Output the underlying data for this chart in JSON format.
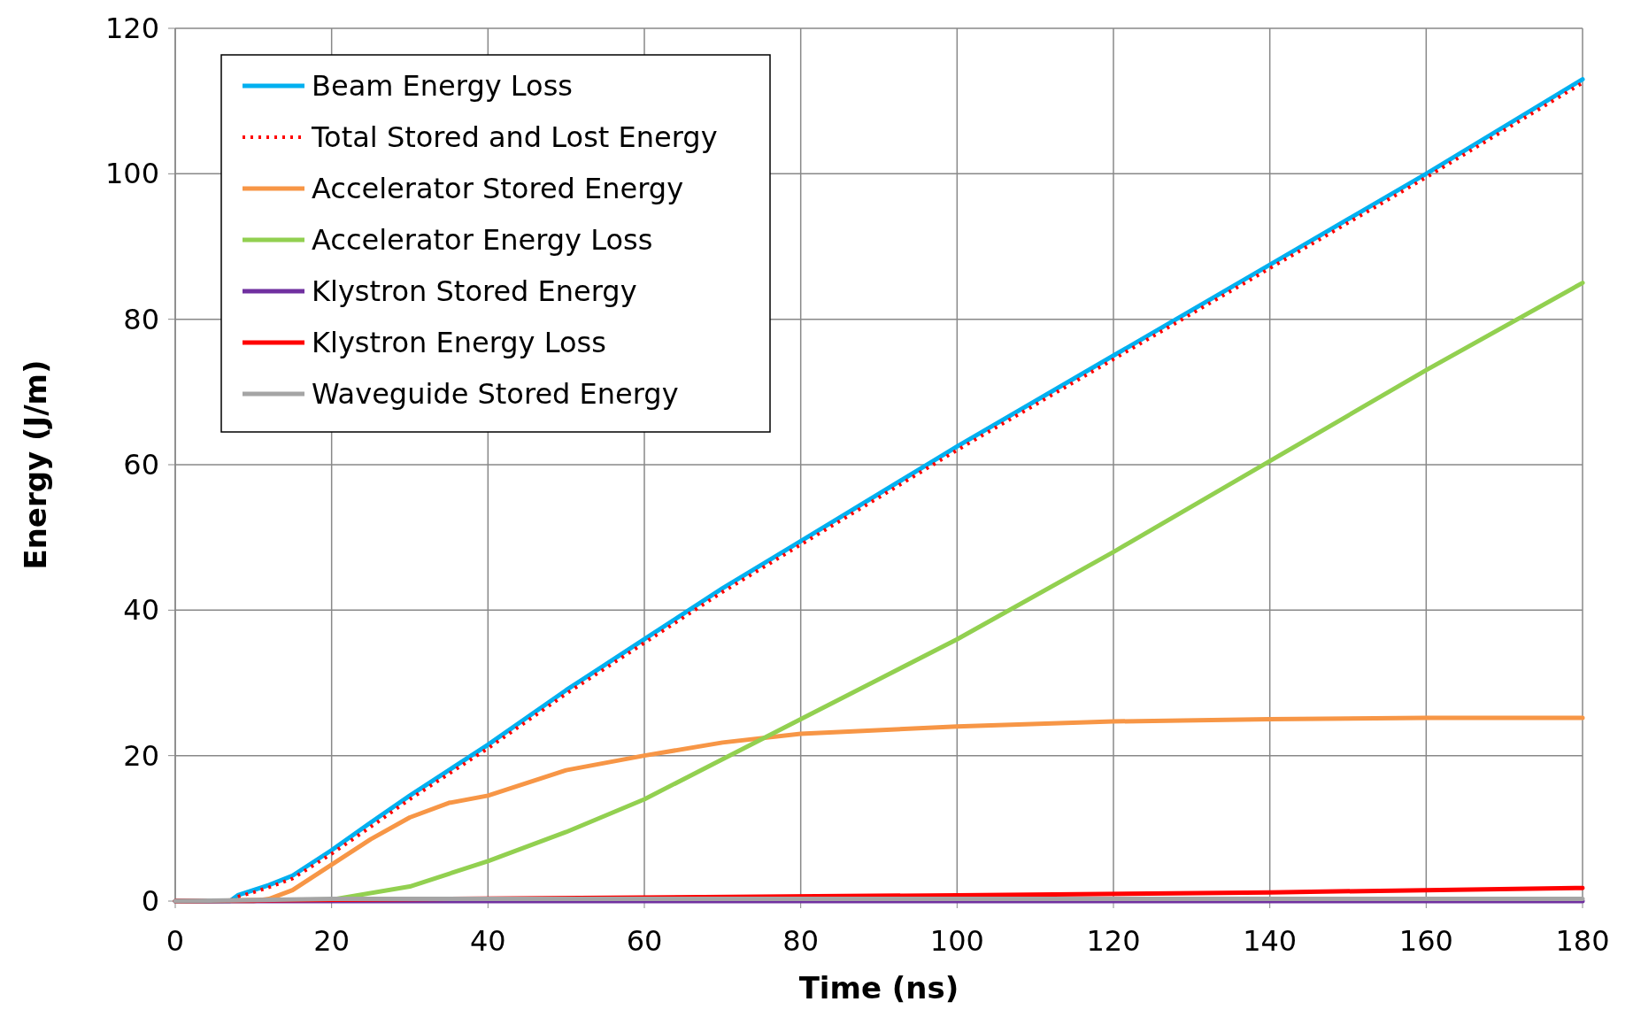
{
  "chart_data": {
    "type": "line",
    "xlabel": "Time (ns)",
    "ylabel": "Energy (J/m)",
    "xlim": [
      0,
      180
    ],
    "ylim": [
      0,
      120
    ],
    "xticks": [
      0,
      20,
      40,
      60,
      80,
      100,
      120,
      140,
      160,
      180
    ],
    "yticks": [
      0,
      20,
      40,
      60,
      80,
      100,
      120
    ],
    "grid": true,
    "legend": "top left",
    "series": [
      {
        "name": "Beam Energy Loss",
        "color": "#00b0f0",
        "line_style": "solid",
        "x": [
          0,
          7,
          8,
          10,
          12,
          15,
          20,
          25,
          30,
          35,
          40,
          50,
          60,
          70,
          80,
          100,
          120,
          140,
          160,
          180
        ],
        "values": [
          0,
          0,
          0.8,
          1.5,
          2.2,
          3.5,
          7,
          10.8,
          14.5,
          18,
          21.5,
          29,
          36,
          43,
          49.5,
          62.5,
          75,
          87.5,
          100,
          113
        ]
      },
      {
        "name": "Total Stored and Lost Energy",
        "color": "#ff0000",
        "line_style": "dotted",
        "x": [
          0,
          7,
          8,
          10,
          12,
          15,
          20,
          25,
          30,
          35,
          40,
          50,
          60,
          70,
          80,
          100,
          120,
          140,
          160,
          180
        ],
        "values": [
          0,
          0,
          0.6,
          1.2,
          1.9,
          3.1,
          6.5,
          10.2,
          14,
          17.5,
          21,
          28.5,
          35.5,
          42.5,
          49,
          62,
          74.5,
          87,
          99.5,
          112.5
        ]
      },
      {
        "name": "Accelerator Stored Energy",
        "color": "#f79646",
        "line_style": "solid",
        "x": [
          0,
          10,
          12,
          15,
          20,
          25,
          30,
          35,
          40,
          50,
          60,
          70,
          80,
          100,
          120,
          140,
          160,
          180
        ],
        "values": [
          0,
          0,
          0.3,
          1.5,
          5,
          8.5,
          11.5,
          13.5,
          14.5,
          18,
          20,
          21.8,
          23,
          24,
          24.7,
          25,
          25.2,
          25.2
        ]
      },
      {
        "name": "Accelerator Energy Loss",
        "color": "#92d050",
        "line_style": "solid",
        "x": [
          0,
          20,
          30,
          40,
          50,
          60,
          70,
          80,
          100,
          120,
          140,
          160,
          180
        ],
        "values": [
          0,
          0.2,
          2,
          5.5,
          9.5,
          14,
          19.5,
          25,
          36,
          48,
          60.5,
          73,
          85
        ]
      },
      {
        "name": "Klystron Stored Energy",
        "color": "#7030a0",
        "line_style": "solid",
        "x": [
          0,
          180
        ],
        "values": [
          0,
          0
        ]
      },
      {
        "name": "Klystron Energy Loss",
        "color": "#ff0000",
        "line_style": "solid",
        "x": [
          0,
          60,
          100,
          140,
          180
        ],
        "values": [
          0,
          0.5,
          0.8,
          1.2,
          1.8
        ]
      },
      {
        "name": "Waveguide Stored Energy",
        "color": "#a5a5a5",
        "line_style": "solid",
        "x": [
          0,
          7,
          20,
          180
        ],
        "values": [
          0,
          0.1,
          0.3,
          0.3
        ]
      }
    ]
  }
}
